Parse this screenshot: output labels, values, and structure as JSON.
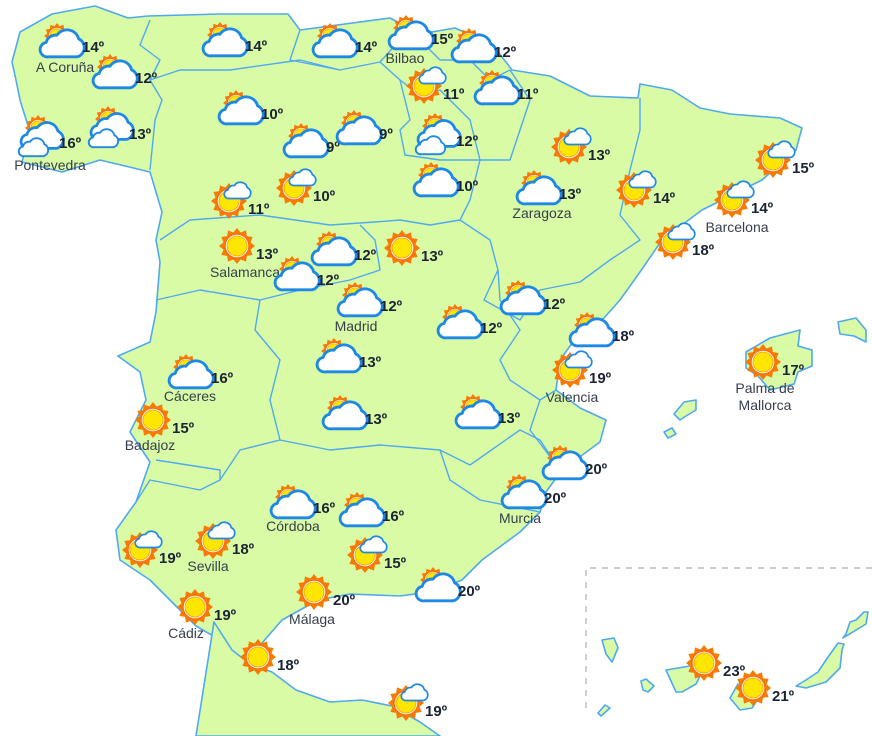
{
  "colors": {
    "land": "#dafba6",
    "border": "#4fa9f0",
    "sun": "#ffe600",
    "sun_rays": "#f57c00",
    "cloud_outline": "#1e88e5",
    "text": "#1b2433"
  },
  "stations": [
    {
      "icon": "sun-cloud",
      "temp": "14º",
      "city": "A Coruña"
    },
    {
      "icon": "sun-cloud",
      "temp": "12º",
      "city": ""
    },
    {
      "icon": "sun-cloud",
      "temp": "14º",
      "city": ""
    },
    {
      "icon": "sun-cloud",
      "temp": "14º",
      "city": ""
    },
    {
      "icon": "sun-cloud",
      "temp": "15º",
      "city": "Bilbao"
    },
    {
      "icon": "sun-cloud",
      "temp": "12º",
      "city": ""
    },
    {
      "icon": "sun-small-cloud",
      "temp": "11º",
      "city": ""
    },
    {
      "icon": "sun-cloud",
      "temp": "11º",
      "city": ""
    },
    {
      "icon": "sun-two-clouds",
      "temp": "16º",
      "city": "Pontevedra"
    },
    {
      "icon": "sun-two-clouds",
      "temp": "13º",
      "city": ""
    },
    {
      "icon": "sun-cloud",
      "temp": "10º",
      "city": ""
    },
    {
      "icon": "sun-cloud",
      "temp": "9º",
      "city": ""
    },
    {
      "icon": "sun-cloud",
      "temp": "9º",
      "city": ""
    },
    {
      "icon": "sun-two-clouds",
      "temp": "12º",
      "city": ""
    },
    {
      "icon": "sun-cloud",
      "temp": "10º",
      "city": ""
    },
    {
      "icon": "sun-small-cloud",
      "temp": "13º",
      "city": ""
    },
    {
      "icon": "sun-cloud",
      "temp": "13º",
      "city": "Zaragoza"
    },
    {
      "icon": "sun-small-cloud",
      "temp": "14º",
      "city": ""
    },
    {
      "icon": "sun-small-cloud",
      "temp": "15º",
      "city": ""
    },
    {
      "icon": "sun-small-cloud",
      "temp": "14º",
      "city": "Barcelona"
    },
    {
      "icon": "sun-small-cloud",
      "temp": "18º",
      "city": ""
    },
    {
      "icon": "sun-small-cloud",
      "temp": "11º",
      "city": ""
    },
    {
      "icon": "sun-small-cloud",
      "temp": "10º",
      "city": ""
    },
    {
      "icon": "sun",
      "temp": "13º",
      "city": "Salamanca"
    },
    {
      "icon": "sun-cloud",
      "temp": "12º",
      "city": ""
    },
    {
      "icon": "sun-cloud",
      "temp": "12º",
      "city": ""
    },
    {
      "icon": "sun",
      "temp": "13º",
      "city": ""
    },
    {
      "icon": "sun-cloud",
      "temp": "12º",
      "city": "Madrid"
    },
    {
      "icon": "sun-cloud",
      "temp": "12º",
      "city": ""
    },
    {
      "icon": "sun-cloud",
      "temp": "12º",
      "city": ""
    },
    {
      "icon": "sun-cloud",
      "temp": "18º",
      "city": ""
    },
    {
      "icon": "sun-cloud",
      "temp": "16º",
      "city": "Cáceres"
    },
    {
      "icon": "sun-cloud",
      "temp": "13º",
      "city": ""
    },
    {
      "icon": "sun-small-cloud",
      "temp": "19º",
      "city": "Valencia"
    },
    {
      "icon": "sun",
      "temp": "17º",
      "city": "Palma de\nMallorca"
    },
    {
      "icon": "sun",
      "temp": "15º",
      "city": "Badajoz"
    },
    {
      "icon": "sun-cloud",
      "temp": "13º",
      "city": ""
    },
    {
      "icon": "sun-cloud",
      "temp": "13º",
      "city": ""
    },
    {
      "icon": "sun-cloud",
      "temp": "20º",
      "city": ""
    },
    {
      "icon": "sun-cloud",
      "temp": "20º",
      "city": "Murcia"
    },
    {
      "icon": "sun-cloud",
      "temp": "16º",
      "city": "Córdoba"
    },
    {
      "icon": "sun-cloud",
      "temp": "16º",
      "city": ""
    },
    {
      "icon": "sun-small-cloud",
      "temp": "19º",
      "city": ""
    },
    {
      "icon": "sun-small-cloud",
      "temp": "18º",
      "city": "Sevilla"
    },
    {
      "icon": "sun-small-cloud",
      "temp": "15º",
      "city": ""
    },
    {
      "icon": "sun-cloud",
      "temp": "20º",
      "city": ""
    },
    {
      "icon": "sun",
      "temp": "20º",
      "city": "Málaga"
    },
    {
      "icon": "sun",
      "temp": "19º",
      "city": "Cádiz"
    },
    {
      "icon": "sun",
      "temp": "18º",
      "city": ""
    },
    {
      "icon": "sun-small-cloud",
      "temp": "19º",
      "city": ""
    },
    {
      "icon": "sun",
      "temp": "23º",
      "city": ""
    },
    {
      "icon": "sun",
      "temp": "21º",
      "city": ""
    }
  ]
}
